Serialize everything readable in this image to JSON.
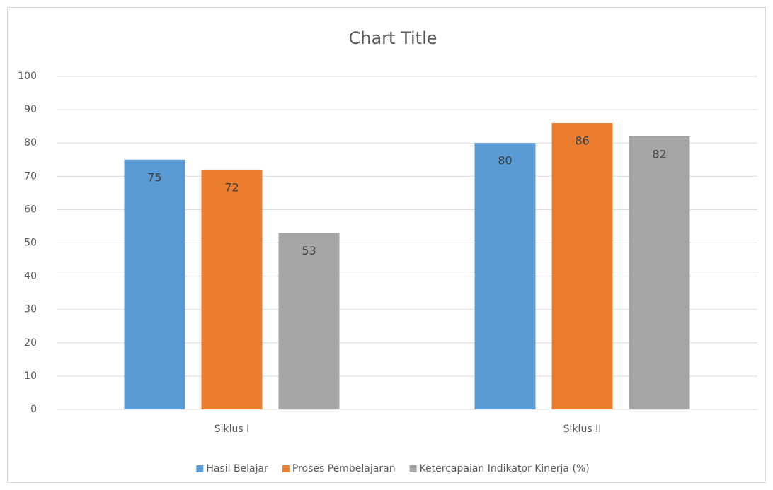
{
  "chart_data": {
    "type": "bar",
    "title": "Chart Title",
    "categories": [
      "Siklus I",
      "Siklus II"
    ],
    "series": [
      {
        "name": "Hasil Belajar",
        "color": "#5b9bd5",
        "values": [
          75,
          80
        ]
      },
      {
        "name": "Proses Pembelajaran",
        "color": "#ed7d31",
        "values": [
          72,
          86
        ]
      },
      {
        "name": "Ketercapaian Indikator Kinerja (%)",
        "color": "#a5a5a5",
        "values": [
          53,
          82
        ]
      }
    ],
    "ylim": [
      0,
      100
    ],
    "yticks": [
      0,
      10,
      20,
      30,
      40,
      50,
      60,
      70,
      80,
      90,
      100
    ],
    "grid": true,
    "legend": "bottom"
  }
}
